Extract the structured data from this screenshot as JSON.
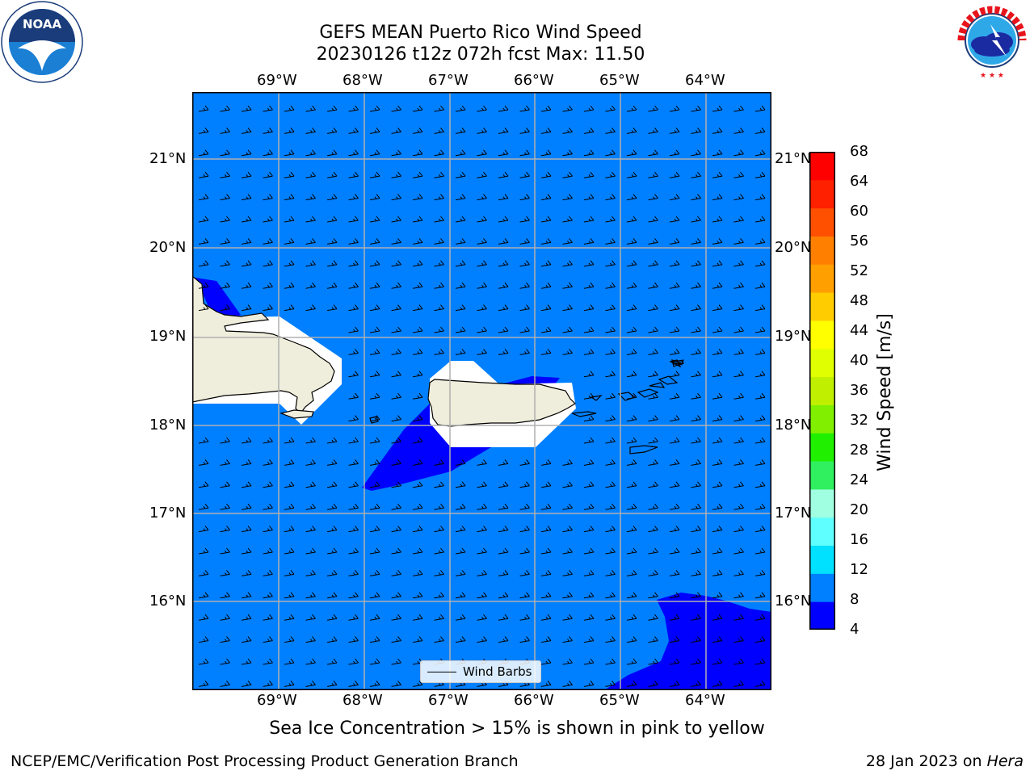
{
  "header": {
    "title_line1": "GEFS MEAN Puerto Rico Wind Speed",
    "title_line2": "20230126 t12z 072h fcst   Max: 11.50"
  },
  "logos": {
    "left_name": "NOAA",
    "left_ring_text": "NATIONAL OCEANIC AND ATMOSPHERIC ADMINISTRATION · U.S. DEPARTMENT OF COMMERCE",
    "right_ring_text": "NATIONAL WEATHER SERVICE"
  },
  "map": {
    "lon_labels": [
      "69°W",
      "68°W",
      "67°W",
      "66°W",
      "65°W",
      "64°W"
    ],
    "lat_labels": [
      "21°N",
      "20°N",
      "19°N",
      "18°N",
      "17°N",
      "16°N"
    ],
    "legend_label": "Wind Barbs",
    "colors": {
      "ocean": "#0080ff",
      "low_wind": "#0000ff",
      "land": "#efeddb",
      "missing": "#ffffff",
      "grid": "#b0b0b0"
    }
  },
  "colorbar": {
    "label": "Wind Speed [m/s]",
    "ticks": [
      "68",
      "64",
      "60",
      "56",
      "52",
      "48",
      "44",
      "40",
      "36",
      "32",
      "28",
      "24",
      "20",
      "16",
      "12",
      "8",
      "4"
    ],
    "bands": [
      "#0000ff",
      "#0080ff",
      "#00e0ff",
      "#60ffff",
      "#a0ffe0",
      "#30f060",
      "#20f000",
      "#80f000",
      "#c0f000",
      "#e0ff00",
      "#ffff00",
      "#ffcc00",
      "#ffa000",
      "#ff8000",
      "#ff5000",
      "#ff2000",
      "#ff0000"
    ]
  },
  "footer": {
    "sea_ice_note": "Sea Ice Concentration > 15% is shown in pink to yellow",
    "branch": "NCEP/EMC/Verification Post Processing Product Generation Branch",
    "date_prefix": "28 Jan 2023 on ",
    "host": "Hera"
  }
}
